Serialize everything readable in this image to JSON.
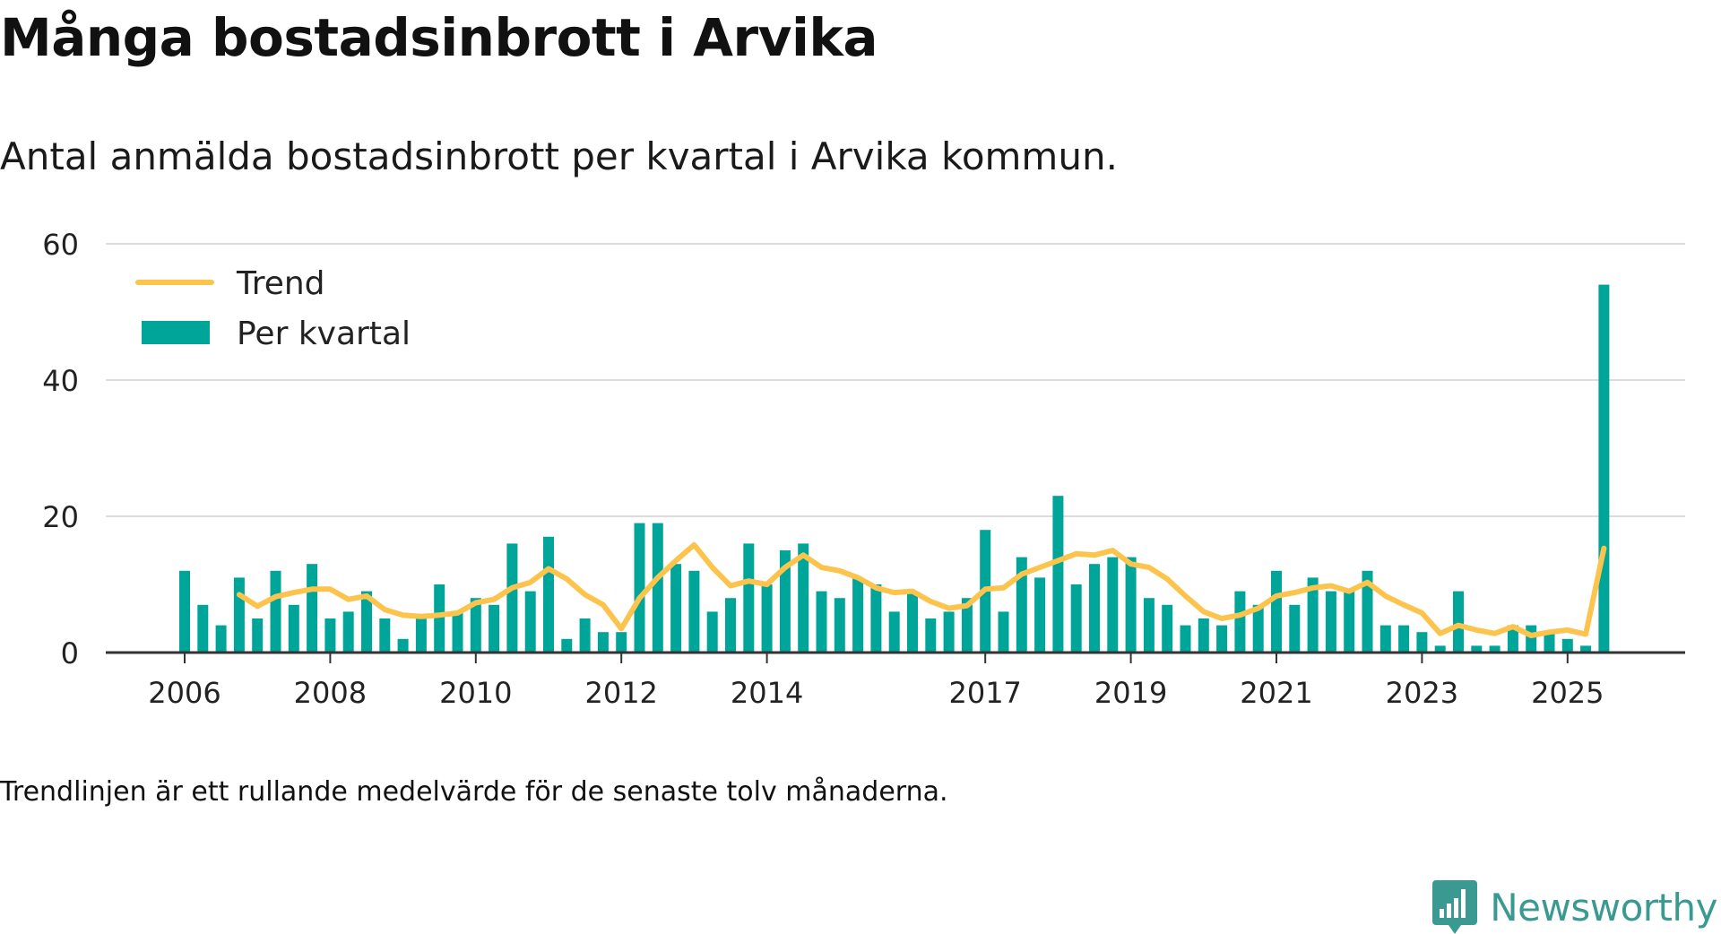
{
  "title": "Många bostadsinbrott i Arvika",
  "subtitle": "Antal anmälda bostadsinbrott per kvartal i Arvika kommun.",
  "footnote": "Trendlinjen är ett rullande medelvärde för de senaste tolv månaderna.",
  "brand": {
    "name": "Newsworthy",
    "icon": "newsworthy-logo-icon"
  },
  "colors": {
    "bars": "#00a599",
    "trend": "#fcc44c",
    "grid": "#dcdcdc",
    "axis": "#333333",
    "brand": "#3a9a92"
  },
  "chart_data": {
    "type": "bar",
    "title": "Många bostadsinbrott i Arvika",
    "xlabel": "",
    "ylabel": "",
    "ylim": [
      0,
      60
    ],
    "yticks": [
      0,
      20,
      40,
      60
    ],
    "xticks": [
      {
        "label": "2006",
        "index": 0
      },
      {
        "label": "2008",
        "index": 8
      },
      {
        "label": "2010",
        "index": 16
      },
      {
        "label": "2012",
        "index": 24
      },
      {
        "label": "2014",
        "index": 32
      },
      {
        "label": "2017",
        "index": 44
      },
      {
        "label": "2019",
        "index": 52
      },
      {
        "label": "2021",
        "index": 60
      },
      {
        "label": "2023",
        "index": 68
      },
      {
        "label": "2025",
        "index": 76
      }
    ],
    "legend": [
      {
        "label": "Trend",
        "kind": "line"
      },
      {
        "label": "Per kvartal",
        "kind": "bar"
      }
    ],
    "series": [
      {
        "name": "Per kvartal",
        "type": "bar",
        "values": [
          12,
          7,
          4,
          11,
          5,
          12,
          7,
          13,
          5,
          6,
          9,
          5,
          2,
          5,
          10,
          6,
          8,
          7,
          16,
          9,
          17,
          2,
          5,
          3,
          3,
          19,
          19,
          13,
          12,
          6,
          8,
          16,
          10,
          15,
          16,
          9,
          8,
          11,
          10,
          6,
          9,
          5,
          6,
          8,
          18,
          6,
          14,
          11,
          23,
          10,
          13,
          14,
          14,
          8,
          7,
          4,
          5,
          4,
          9,
          7,
          12,
          7,
          11,
          9,
          9,
          12,
          4,
          4,
          3,
          1,
          9,
          1,
          1,
          4,
          4,
          3,
          2,
          1,
          54
        ]
      },
      {
        "name": "Trend",
        "type": "line",
        "values": [
          null,
          null,
          null,
          8.5,
          6.8,
          8.2,
          8.8,
          9.3,
          9.3,
          7.8,
          8.3,
          6.3,
          5.5,
          5.3,
          5.5,
          5.8,
          7.3,
          7.8,
          9.5,
          10.3,
          12.3,
          10.8,
          8.5,
          7.0,
          3.5,
          8.0,
          11.0,
          13.5,
          15.8,
          12.5,
          9.8,
          10.5,
          10.0,
          12.5,
          14.3,
          12.5,
          12.0,
          11.0,
          9.5,
          8.8,
          9.0,
          7.5,
          6.5,
          6.9,
          9.3,
          9.5,
          11.5,
          12.5,
          13.5,
          14.5,
          14.3,
          15.0,
          13.0,
          12.5,
          10.8,
          8.3,
          6.0,
          5.0,
          5.5,
          6.5,
          8.3,
          8.8,
          9.5,
          9.8,
          9.0,
          10.3,
          8.3,
          7.0,
          5.8,
          2.8,
          4.0,
          3.3,
          2.8,
          3.8,
          2.5,
          3.0,
          3.3,
          2.7,
          15.3
        ]
      }
    ]
  }
}
